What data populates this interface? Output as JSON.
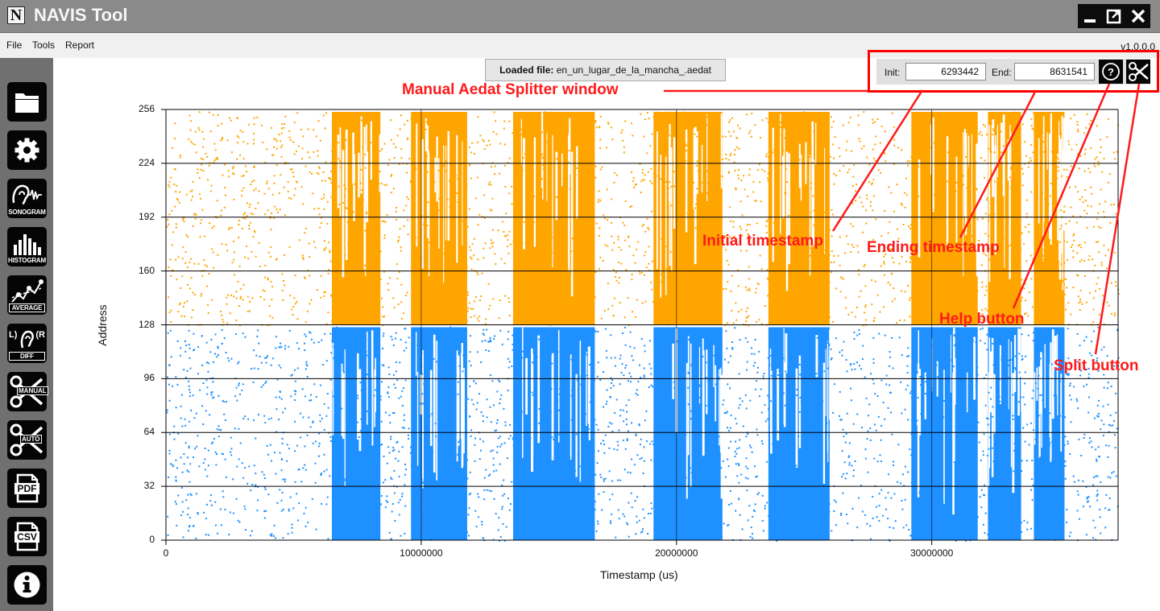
{
  "window": {
    "logo_letter": "N",
    "title": "NAVIS Tool",
    "controls": [
      "minimize",
      "restore",
      "close"
    ]
  },
  "menu": {
    "items": [
      "File",
      "Tools",
      "Report"
    ],
    "version": "v1.0.0.0"
  },
  "sidebar": {
    "buttons": [
      {
        "icon": "folder-icon",
        "label": ""
      },
      {
        "icon": "gear-icon",
        "label": ""
      },
      {
        "icon": "sonogram-icon",
        "label": "SONOGRAM"
      },
      {
        "icon": "histogram-icon",
        "label": "HISTOGRAM"
      },
      {
        "icon": "average-icon",
        "label": "AVERAGE"
      },
      {
        "icon": "diff-icon",
        "label": "DIFF",
        "extra": "L)",
        "extra2": "(R"
      },
      {
        "icon": "manual-split-icon",
        "label": "MANUAL"
      },
      {
        "icon": "auto-split-icon",
        "label": "AUTO"
      },
      {
        "icon": "pdf-icon",
        "label": "PDF"
      },
      {
        "icon": "csv-icon",
        "label": "CSV"
      },
      {
        "icon": "info-icon",
        "label": ""
      }
    ]
  },
  "loaded_file": {
    "prefix": "Loaded file:",
    "name": "en_un_lugar_de_la_mancha_.aedat"
  },
  "splitter": {
    "init_label": "Init:",
    "init_value": "6293442",
    "end_label": "End:",
    "end_value": "8631541",
    "help_icon": "help-icon",
    "split_icon": "scissors-icon"
  },
  "annotations": {
    "window_label": "Manual Aedat Splitter window",
    "initial_timestamp": "Initial timestamp",
    "ending_timestamp": "Ending timestamp",
    "help_button": "Help button",
    "split_button": "Split button",
    "color": "#ff1a1a"
  },
  "chart_data": {
    "type": "scatter",
    "xlabel": "Timestamp (us)",
    "ylabel": "Address",
    "xlim": [
      0,
      37300000
    ],
    "ylim": [
      0,
      256
    ],
    "x_ticks": [
      "0",
      "10000000",
      "20000000",
      "30000000"
    ],
    "x_tick_values": [
      0,
      10000000,
      20000000,
      30000000
    ],
    "y_ticks": [
      "0",
      "32",
      "64",
      "96",
      "128",
      "160",
      "192",
      "224",
      "256"
    ],
    "y_tick_values": [
      0,
      32,
      64,
      96,
      128,
      160,
      192,
      224,
      256
    ],
    "grid": true,
    "series": [
      {
        "address_range": [
          128,
          255
        ],
        "color": "#ffa500"
      },
      {
        "address_range": [
          0,
          127
        ],
        "color": "#1e90ff"
      }
    ],
    "dense_bursts_x": [
      [
        6500000,
        8400000
      ],
      [
        9600000,
        11800000
      ],
      [
        13600000,
        16800000
      ],
      [
        19100000,
        21800000
      ],
      [
        23600000,
        26000000
      ],
      [
        29200000,
        31800000
      ],
      [
        32200000,
        33500000
      ],
      [
        34000000,
        35200000
      ]
    ]
  }
}
